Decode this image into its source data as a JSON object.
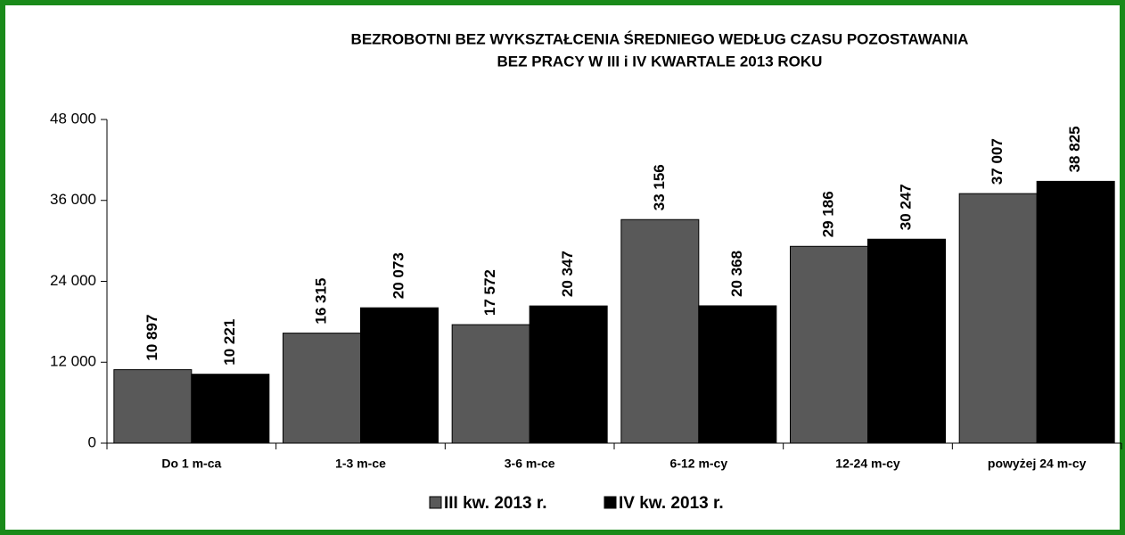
{
  "chart_data": {
    "type": "bar",
    "title": [
      "BEZROBOTNI BEZ WYKSZTAŁCENIA ŚREDNIEGO WEDŁUG  CZASU POZOSTAWANIA",
      "BEZ PRACY W  III  i IV KWARTALE 2013 ROKU"
    ],
    "categories": [
      "Do 1 m-ca",
      "1-3 m-ce",
      "3-6 m-ce",
      "6-12 m-cy",
      "12-24 m-cy",
      "powyżej 24 m-cy"
    ],
    "series": [
      {
        "name": "III kw. 2013 r.",
        "color": "#595959",
        "values": [
          10897,
          16315,
          17572,
          33156,
          29186,
          37007
        ],
        "value_labels": [
          "10 897",
          "16 315",
          "17 572",
          "33 156",
          "29 186",
          "37 007"
        ]
      },
      {
        "name": "IV kw. 2013 r.",
        "color": "#000000",
        "values": [
          10221,
          20073,
          20347,
          20368,
          30247,
          38825
        ],
        "value_labels": [
          "10 221",
          "20 073",
          "20 347",
          "20 368",
          "30 247",
          "38 825"
        ]
      }
    ],
    "ylim": [
      0,
      48000
    ],
    "yticks": [
      0,
      {
        "value": 12000,
        "label": "12 000"
      },
      {
        "value": 24000,
        "label": "24 000"
      },
      {
        "value": 36000,
        "label": "36 000"
      },
      {
        "value": 48000,
        "label": "48 000"
      }
    ],
    "legend": "bottom"
  }
}
